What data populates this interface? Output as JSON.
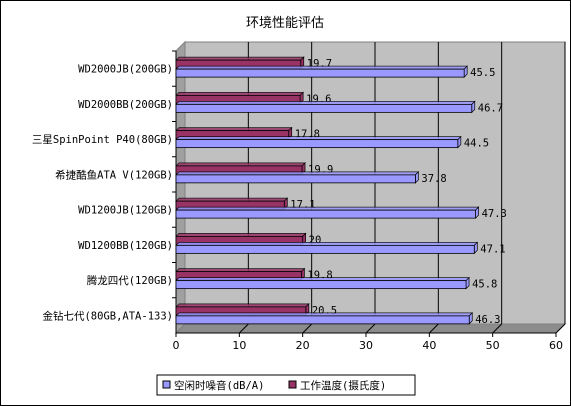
{
  "chart_data": {
    "type": "bar",
    "orientation": "horizontal",
    "title": "环境性能评估",
    "categories": [
      "WD2000JB(200GB)",
      "WD2000BB(200GB)",
      "三星SpinPoint P40(80GB)",
      "希捷酷鱼ATA V(120GB)",
      "WD1200JB(120GB)",
      "WD1200BB(120GB)",
      "腾龙四代(120GB)",
      "金钻七代(80GB,ATA-133)"
    ],
    "series": [
      {
        "name": "空闲时噪音(dB/A)",
        "color": "#9999ff",
        "values": [
          45.5,
          46.7,
          44.5,
          37.8,
          47.3,
          47.1,
          45.8,
          46.3
        ]
      },
      {
        "name": "工作温度(摄氏度)",
        "color": "#993366",
        "values": [
          19.7,
          19.6,
          17.8,
          19.9,
          17.1,
          20,
          19.8,
          20.5
        ]
      }
    ],
    "xlim": [
      0,
      60
    ],
    "xticks": [
      0,
      10,
      20,
      30,
      40,
      50,
      60
    ],
    "grid": true,
    "legend_position": "bottom",
    "plot_background": "#c0c0c0"
  }
}
